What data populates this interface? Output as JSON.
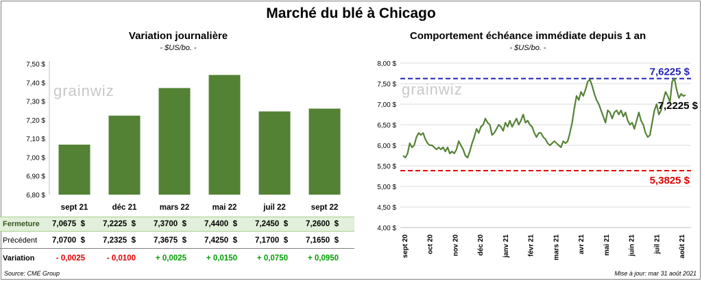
{
  "title": "Marché du blé à Chicago",
  "left_panel": {
    "title": "Variation journalière",
    "subtitle": "- $US/bo. -"
  },
  "right_panel": {
    "title": "Comportement échéance immédiate depuis 1 an",
    "subtitle": "- $US/bo. -"
  },
  "watermark": "grainwiz",
  "table": {
    "rows": [
      {
        "label": "Fermeture",
        "values": [
          "7,0675  $",
          "7,2225  $",
          "7,3700  $",
          "7,4400  $",
          "7,2450  $",
          "7,2600  $"
        ]
      },
      {
        "label": "Précédent",
        "values": [
          "7,0700  $",
          "7,2325  $",
          "7,3675  $",
          "7,4250  $",
          "7,1700  $",
          "7,1650  $"
        ]
      },
      {
        "label": "Variation",
        "values": [
          "- 0,0025",
          "- 0,0100",
          "+ 0,0025",
          "+ 0,0150",
          "+ 0,0750",
          "+ 0,0950"
        ]
      }
    ],
    "variation_signs": [
      "neg",
      "neg",
      "pos",
      "pos",
      "pos",
      "pos"
    ]
  },
  "footer": {
    "source": "Source: CME Group",
    "updated": "Mise à jour: mar 31 août 2021"
  },
  "colors": {
    "bar": "#548235",
    "line": "#548235",
    "high": "#1f1fb4",
    "low": "#e00000",
    "positive": "#00a000",
    "negative": "#e00000"
  },
  "chart_data": [
    {
      "type": "bar",
      "title": "Variation journalière",
      "subtitle": "- $US/bo. -",
      "categories": [
        "sept 21",
        "déc 21",
        "mars 22",
        "mai 22",
        "juil 22",
        "sept 22"
      ],
      "values": [
        7.0675,
        7.2225,
        7.37,
        7.44,
        7.245,
        7.26
      ],
      "ylim": [
        6.8,
        7.5
      ],
      "yticks": [
        "6,80 $",
        "6,90 $",
        "7,00 $",
        "7,10 $",
        "7,20 $",
        "7,30 $",
        "7,40 $",
        "7,50 $"
      ],
      "grid": false
    },
    {
      "type": "line",
      "title": "Comportement échéance immédiate depuis 1 an",
      "subtitle": "- $US/bo. -",
      "ylim": [
        4.0,
        8.0
      ],
      "yticks": [
        "4,00 $",
        "4,50 $",
        "5,00 $",
        "5,50 $",
        "6,00 $",
        "6,50 $",
        "7,00 $",
        "7,50 $",
        "8,00 $"
      ],
      "xticks": [
        "sept 20",
        "oct 20",
        "nov 20",
        "déc 20",
        "janv 21",
        "févr 21",
        "mars 21",
        "avr 21",
        "mai 21",
        "juin 21",
        "juil 21",
        "août 21"
      ],
      "grid": true,
      "max_line": {
        "value": 7.6225,
        "label": "7,6225 $"
      },
      "min_line": {
        "value": 5.3825,
        "label": "5,3825 $"
      },
      "last_label": "7,2225 $",
      "series_points": [
        [
          0,
          5.75
        ],
        [
          2,
          5.7
        ],
        [
          4,
          5.8
        ],
        [
          6,
          6.05
        ],
        [
          8,
          5.95
        ],
        [
          10,
          6.0
        ],
        [
          12,
          6.2
        ],
        [
          14,
          6.3
        ],
        [
          16,
          6.25
        ],
        [
          18,
          6.3
        ],
        [
          20,
          6.15
        ],
        [
          22,
          6.05
        ],
        [
          24,
          6.0
        ],
        [
          26,
          6.0
        ],
        [
          28,
          5.95
        ],
        [
          30,
          5.9
        ],
        [
          32,
          5.95
        ],
        [
          34,
          5.9
        ],
        [
          36,
          5.95
        ],
        [
          38,
          5.85
        ],
        [
          40,
          5.95
        ],
        [
          42,
          5.8
        ],
        [
          44,
          5.85
        ],
        [
          46,
          5.8
        ],
        [
          48,
          5.9
        ],
        [
          50,
          6.1
        ],
        [
          52,
          6.0
        ],
        [
          54,
          5.9
        ],
        [
          56,
          5.75
        ],
        [
          58,
          5.7
        ],
        [
          60,
          5.85
        ],
        [
          62,
          6.05
        ],
        [
          64,
          6.2
        ],
        [
          66,
          6.4
        ],
        [
          68,
          6.3
        ],
        [
          70,
          6.45
        ],
        [
          72,
          6.5
        ],
        [
          74,
          6.65
        ],
        [
          76,
          6.55
        ],
        [
          78,
          6.5
        ],
        [
          80,
          6.25
        ],
        [
          82,
          6.3
        ],
        [
          84,
          6.4
        ],
        [
          86,
          6.5
        ],
        [
          88,
          6.45
        ],
        [
          90,
          6.35
        ],
        [
          92,
          6.55
        ],
        [
          94,
          6.45
        ],
        [
          96,
          6.6
        ],
        [
          98,
          6.45
        ],
        [
          100,
          6.55
        ],
        [
          102,
          6.65
        ],
        [
          104,
          6.5
        ],
        [
          106,
          6.6
        ],
        [
          108,
          6.75
        ],
        [
          110,
          6.55
        ],
        [
          112,
          6.6
        ],
        [
          114,
          6.5
        ],
        [
          116,
          6.45
        ],
        [
          118,
          6.3
        ],
        [
          120,
          6.2
        ],
        [
          122,
          6.3
        ],
        [
          124,
          6.3
        ],
        [
          126,
          6.2
        ],
        [
          128,
          6.15
        ],
        [
          130,
          6.05
        ],
        [
          132,
          6.0
        ],
        [
          134,
          6.05
        ],
        [
          136,
          6.1
        ],
        [
          138,
          6.05
        ],
        [
          140,
          6.0
        ],
        [
          142,
          5.95
        ],
        [
          144,
          6.1
        ],
        [
          146,
          6.05
        ],
        [
          148,
          6.1
        ],
        [
          150,
          6.3
        ],
        [
          152,
          6.55
        ],
        [
          154,
          6.9
        ],
        [
          156,
          7.2
        ],
        [
          158,
          7.1
        ],
        [
          160,
          7.3
        ],
        [
          162,
          7.2
        ],
        [
          164,
          7.35
        ],
        [
          166,
          7.55
        ],
        [
          168,
          7.6
        ],
        [
          170,
          7.45
        ],
        [
          172,
          7.25
        ],
        [
          174,
          7.1
        ],
        [
          176,
          7.0
        ],
        [
          178,
          6.85
        ],
        [
          180,
          6.7
        ],
        [
          182,
          6.55
        ],
        [
          184,
          6.85
        ],
        [
          186,
          6.8
        ],
        [
          188,
          6.65
        ],
        [
          190,
          6.8
        ],
        [
          192,
          6.85
        ],
        [
          194,
          6.75
        ],
        [
          196,
          6.85
        ],
        [
          198,
          6.7
        ],
        [
          200,
          6.8
        ],
        [
          202,
          6.6
        ],
        [
          204,
          6.5
        ],
        [
          206,
          6.55
        ],
        [
          208,
          6.4
        ],
        [
          210,
          6.6
        ],
        [
          212,
          6.8
        ],
        [
          214,
          6.6
        ],
        [
          216,
          6.5
        ],
        [
          218,
          6.3
        ],
        [
          220,
          6.2
        ],
        [
          222,
          6.25
        ],
        [
          224,
          6.55
        ],
        [
          226,
          6.85
        ],
        [
          228,
          7.0
        ],
        [
          230,
          6.75
        ],
        [
          232,
          6.85
        ],
        [
          234,
          7.1
        ],
        [
          236,
          7.3
        ],
        [
          238,
          7.2
        ],
        [
          240,
          7.05
        ],
        [
          242,
          7.55
        ],
        [
          244,
          7.6225
        ],
        [
          246,
          7.35
        ],
        [
          248,
          7.15
        ],
        [
          250,
          7.25
        ],
        [
          252,
          7.2
        ],
        [
          254,
          7.22
        ]
      ]
    }
  ]
}
